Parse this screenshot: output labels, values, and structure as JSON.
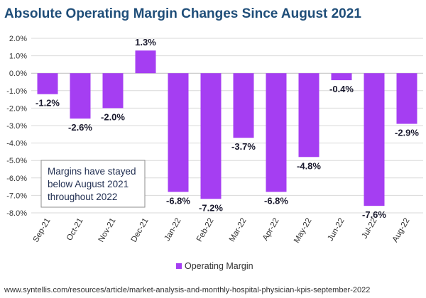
{
  "chart_data": {
    "type": "bar",
    "title": "Absolute Operating Margin Changes Since August 2021",
    "categories": [
      "Sep-21",
      "Oct-21",
      "Nov-21",
      "Dec-21",
      "Jan-22",
      "Feb-22",
      "Mar-22",
      "Apr-22",
      "May-22",
      "Jun-22",
      "Jul-22",
      "Aug-22"
    ],
    "series": [
      {
        "name": "Operating Margin",
        "values": [
          -1.2,
          -2.6,
          -2.0,
          1.3,
          -6.8,
          -7.2,
          -3.7,
          -6.8,
          -4.8,
          -0.4,
          -7.6,
          -2.9
        ],
        "labels": [
          "-1.2%",
          "-2.6%",
          "-2.0%",
          "1.3%",
          "-6.8%",
          "-7.2%",
          "-3.7%",
          "-6.8%",
          "-4.8%",
          "-0.4%",
          "-7.6%",
          "-2.9%"
        ]
      }
    ],
    "ylim": [
      -8.0,
      2.0
    ],
    "yticks": [
      "2.0%",
      "1.0%",
      "0.0%",
      "-1.0%",
      "-2.0%",
      "-3.0%",
      "-4.0%",
      "-5.0%",
      "-6.0%",
      "-7.0%",
      "-8.0%"
    ],
    "legend": "bottom",
    "annotation": [
      "Margins have stayed",
      "below August 2021",
      "throughout 2022"
    ],
    "colors": {
      "bar": "#a53ef2",
      "title": "#1f4e79",
      "grid": "#d9d9d9"
    }
  },
  "source": "www.syntellis.com/resources/article/market-analysis-and-monthly-hospital-physician-kpis-september-2022"
}
